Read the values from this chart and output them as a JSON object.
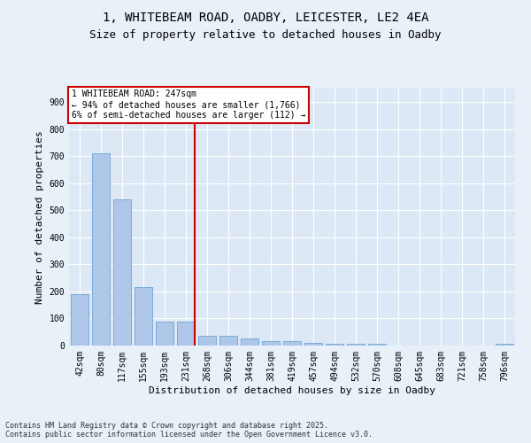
{
  "title_line1": "1, WHITEBEAM ROAD, OADBY, LEICESTER, LE2 4EA",
  "title_line2": "Size of property relative to detached houses in Oadby",
  "xlabel": "Distribution of detached houses by size in Oadby",
  "ylabel": "Number of detached properties",
  "categories": [
    "42sqm",
    "80sqm",
    "117sqm",
    "155sqm",
    "193sqm",
    "231sqm",
    "268sqm",
    "306sqm",
    "344sqm",
    "381sqm",
    "419sqm",
    "457sqm",
    "494sqm",
    "532sqm",
    "570sqm",
    "608sqm",
    "645sqm",
    "683sqm",
    "721sqm",
    "758sqm",
    "796sqm"
  ],
  "values": [
    190,
    710,
    540,
    215,
    90,
    90,
    35,
    35,
    25,
    15,
    15,
    10,
    5,
    5,
    5,
    0,
    0,
    0,
    0,
    0,
    5
  ],
  "bar_color": "#aec6e8",
  "bar_edge_color": "#7aabda",
  "vline_color": "#cc0000",
  "annotation_box_text": "1 WHITEBEAM ROAD: 247sqm\n← 94% of detached houses are smaller (1,766)\n6% of semi-detached houses are larger (112) →",
  "ylim": [
    0,
    950
  ],
  "yticks": [
    0,
    100,
    200,
    300,
    400,
    500,
    600,
    700,
    800,
    900
  ],
  "bg_color": "#e8f0f8",
  "plot_bg_color": "#dce8f5",
  "footer_text": "Contains HM Land Registry data © Crown copyright and database right 2025.\nContains public sector information licensed under the Open Government Licence v3.0.",
  "annotation_fontsize": 7.0,
  "title_fontsize1": 10,
  "title_fontsize2": 9,
  "ylabel_fontsize": 8,
  "xlabel_fontsize": 8,
  "tick_fontsize": 7,
  "footer_fontsize": 6
}
